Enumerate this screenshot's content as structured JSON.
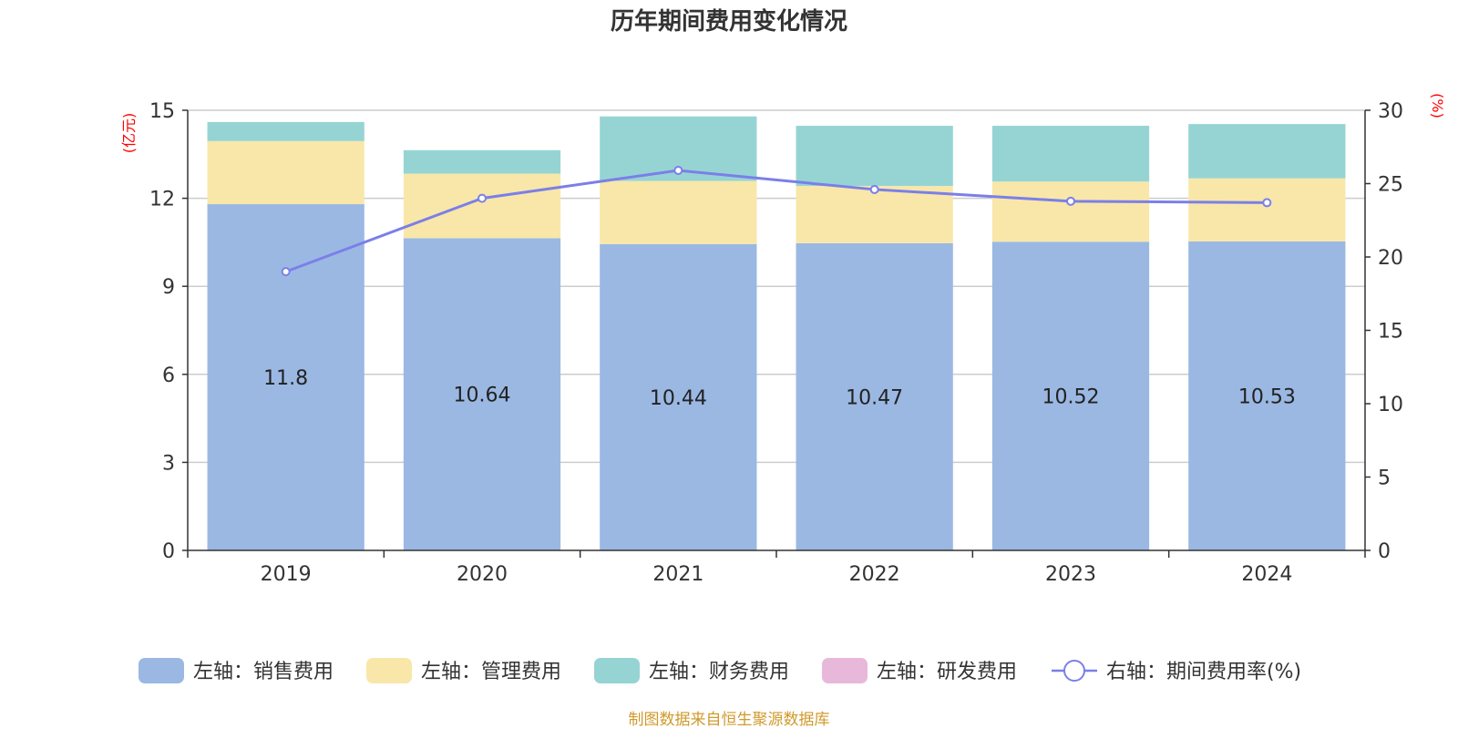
{
  "chart_data": {
    "type": "bar",
    "title": "历年期间费用变化情况",
    "categories": [
      "2019",
      "2020",
      "2021",
      "2022",
      "2023",
      "2024"
    ],
    "left_axis": {
      "unit": "(亿元)",
      "ylim": [
        0,
        15
      ],
      "ticks": [
        "0",
        "3",
        "6",
        "9",
        "12",
        "15"
      ]
    },
    "right_axis": {
      "unit": "(%)",
      "ylim": [
        0,
        30
      ],
      "ticks": [
        "0",
        "5",
        "10",
        "15",
        "20",
        "25",
        "30"
      ]
    },
    "series": [
      {
        "name": "左轴：销售费用",
        "axis": "left",
        "kind": "bar",
        "color": "#9bb8e3",
        "values": [
          11.8,
          10.64,
          10.44,
          10.47,
          10.52,
          10.53
        ],
        "labels": [
          "11.8",
          "10.64",
          "10.44",
          "10.47",
          "10.52",
          "10.53"
        ]
      },
      {
        "name": "左轴：管理费用",
        "axis": "left",
        "kind": "bar",
        "color": "#f8e7a9",
        "values": [
          2.15,
          2.2,
          2.15,
          1.95,
          2.05,
          2.15
        ]
      },
      {
        "name": "左轴：财务费用",
        "axis": "left",
        "kind": "bar",
        "color": "#96d4d4",
        "values": [
          0.65,
          0.8,
          2.2,
          2.05,
          1.9,
          1.85
        ]
      },
      {
        "name": "左轴：研发费用",
        "axis": "left",
        "kind": "bar",
        "color": "#e8b8da",
        "values": [
          0,
          0,
          0,
          0,
          0,
          0
        ]
      },
      {
        "name": "右轴：期间费用率(%)",
        "axis": "right",
        "kind": "line",
        "color": "#7b7fe8",
        "values": [
          19.0,
          24.0,
          25.9,
          24.6,
          23.8,
          23.7
        ]
      }
    ],
    "grid": true,
    "legend_position": "bottom"
  },
  "source_text": "制图数据来自恒生聚源数据库"
}
